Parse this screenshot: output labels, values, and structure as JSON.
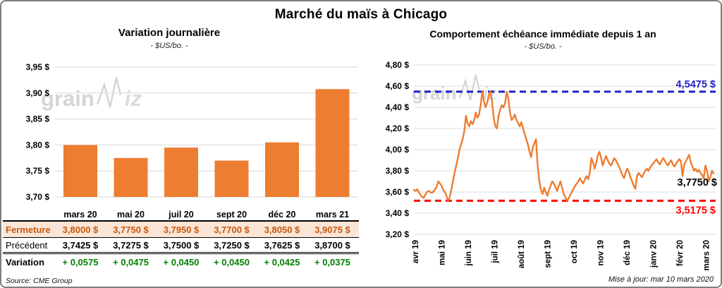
{
  "page": {
    "title": "Marché du maïs à Chicago",
    "source_note": "Source: CME Group",
    "updated_note": "Mise à jour: mar 10 mars 2020",
    "watermark": {
      "text_left": "grain",
      "text_right": "iz"
    }
  },
  "colors": {
    "accent_orange": "#ED7D31",
    "fermeture_text": "#C55A11",
    "fermeture_bg": "#FBE5D6",
    "variation_green": "#008000",
    "max_line_blue": "#2121C8",
    "min_line_red": "#FF0000",
    "last_label_black": "#000000",
    "gridline": "#E4E4E4",
    "watermark_gray": "#D5D5D5"
  },
  "chart_data": [
    {
      "type": "bar",
      "title": "Variation journalière",
      "subtitle": "- $US/bo. -",
      "categories": [
        "mars 20",
        "mai 20",
        "juil 20",
        "sept 20",
        "déc 20",
        "mars 21"
      ],
      "values": [
        3.8,
        3.775,
        3.795,
        3.77,
        3.805,
        3.9075
      ],
      "ylim": [
        3.7,
        3.95
      ],
      "ytick_step": 0.05,
      "ytick_labels": [
        "3,95 $",
        "3,90 $",
        "3,85 $",
        "3,80 $",
        "3,75 $",
        "3,70 $"
      ],
      "bar_color": "#ED7D31",
      "grid": true,
      "legend": "none"
    },
    {
      "type": "line",
      "title": "Comportement échéance immédiate depuis 1 an",
      "subtitle": "- $US/bo. -",
      "x_labels": [
        "avr 19",
        "mai 19",
        "juin 19",
        "juil 19",
        "août 19",
        "sept 19",
        "oct 19",
        "nov 19",
        "déc 19",
        "janv 20",
        "févr 20",
        "mars 20"
      ],
      "ylim": [
        3.2,
        4.8
      ],
      "ytick_step": 0.2,
      "ytick_labels": [
        "4,80 $",
        "4,60 $",
        "4,40 $",
        "4,20 $",
        "4,00 $",
        "3,80 $",
        "3,60 $",
        "3,40 $",
        "3,20 $"
      ],
      "line_color": "#ED7D31",
      "grid": true,
      "legend": "none",
      "values": [
        3.62,
        3.61,
        3.625,
        3.6,
        3.575,
        3.555,
        3.545,
        3.575,
        3.6,
        3.61,
        3.6,
        3.59,
        3.605,
        3.625,
        3.65,
        3.7,
        3.68,
        3.66,
        3.62,
        3.6,
        3.565,
        3.5175,
        3.55,
        3.62,
        3.7,
        3.78,
        3.85,
        3.92,
        4.0,
        4.05,
        4.1,
        4.18,
        4.32,
        4.25,
        4.22,
        4.27,
        4.24,
        4.28,
        4.35,
        4.3,
        4.33,
        4.42,
        4.5475,
        4.46,
        4.4,
        4.44,
        4.52,
        4.5475,
        4.45,
        4.3,
        4.22,
        4.2,
        4.32,
        4.38,
        4.42,
        4.4,
        4.44,
        4.5475,
        4.48,
        4.35,
        4.28,
        4.3,
        4.33,
        4.28,
        4.25,
        4.22,
        4.26,
        4.2,
        4.15,
        4.1,
        4.05,
        3.98,
        3.93,
        4.02,
        4.06,
        4.1,
        3.85,
        3.7,
        3.62,
        3.58,
        3.64,
        3.6,
        3.565,
        3.62,
        3.66,
        3.7,
        3.68,
        3.64,
        3.61,
        3.66,
        3.7,
        3.64,
        3.58,
        3.55,
        3.5175,
        3.54,
        3.57,
        3.6,
        3.63,
        3.66,
        3.68,
        3.7,
        3.73,
        3.7,
        3.68,
        3.72,
        3.75,
        3.72,
        3.78,
        3.92,
        3.88,
        3.82,
        3.88,
        3.95,
        3.98,
        3.92,
        3.85,
        3.9,
        3.94,
        3.9,
        3.87,
        3.85,
        3.88,
        3.92,
        3.9,
        3.87,
        3.84,
        3.8,
        3.76,
        3.73,
        3.78,
        3.82,
        3.79,
        3.74,
        3.7,
        3.66,
        3.63,
        3.75,
        3.78,
        3.76,
        3.74,
        3.77,
        3.8,
        3.82,
        3.8,
        3.83,
        3.85,
        3.87,
        3.89,
        3.91,
        3.88,
        3.86,
        3.89,
        3.92,
        3.9,
        3.87,
        3.85,
        3.88,
        3.9,
        3.86,
        3.84,
        3.87,
        3.89,
        3.91,
        3.89,
        3.75,
        3.86,
        3.89,
        3.92,
        3.95,
        3.88,
        3.84,
        3.8,
        3.82,
        3.79,
        3.81,
        3.78,
        3.76,
        3.73,
        3.85,
        3.8,
        3.7,
        3.74,
        3.8,
        3.775
      ],
      "annotations": {
        "max": {
          "label": "4,5475 $",
          "value": 4.5475,
          "color": "#2121C8",
          "style": "dashed"
        },
        "min": {
          "label": "3,5175 $",
          "value": 3.5175,
          "color": "#FF0000",
          "style": "dashed"
        },
        "last": {
          "label": "3,7750 $",
          "value": 3.775,
          "color": "#000000"
        }
      }
    }
  ],
  "table": {
    "headers": [
      "mars 20",
      "mai 20",
      "juil 20",
      "sept 20",
      "déc 20",
      "mars 21"
    ],
    "rows": [
      {
        "label": "Fermeture",
        "values": [
          "3,8000 $",
          "3,7750 $",
          "3,7950 $",
          "3,7700 $",
          "3,8050 $",
          "3,9075 $"
        ]
      },
      {
        "label": "Précédent",
        "values": [
          "3,7425 $",
          "3,7275 $",
          "3,7500 $",
          "3,7250 $",
          "3,7625 $",
          "3,8700 $"
        ]
      },
      {
        "label": "Variation",
        "values": [
          "+ 0,0575",
          "+ 0,0475",
          "+ 0,0450",
          "+ 0,0450",
          "+ 0,0425",
          "+ 0,0375"
        ]
      }
    ]
  }
}
